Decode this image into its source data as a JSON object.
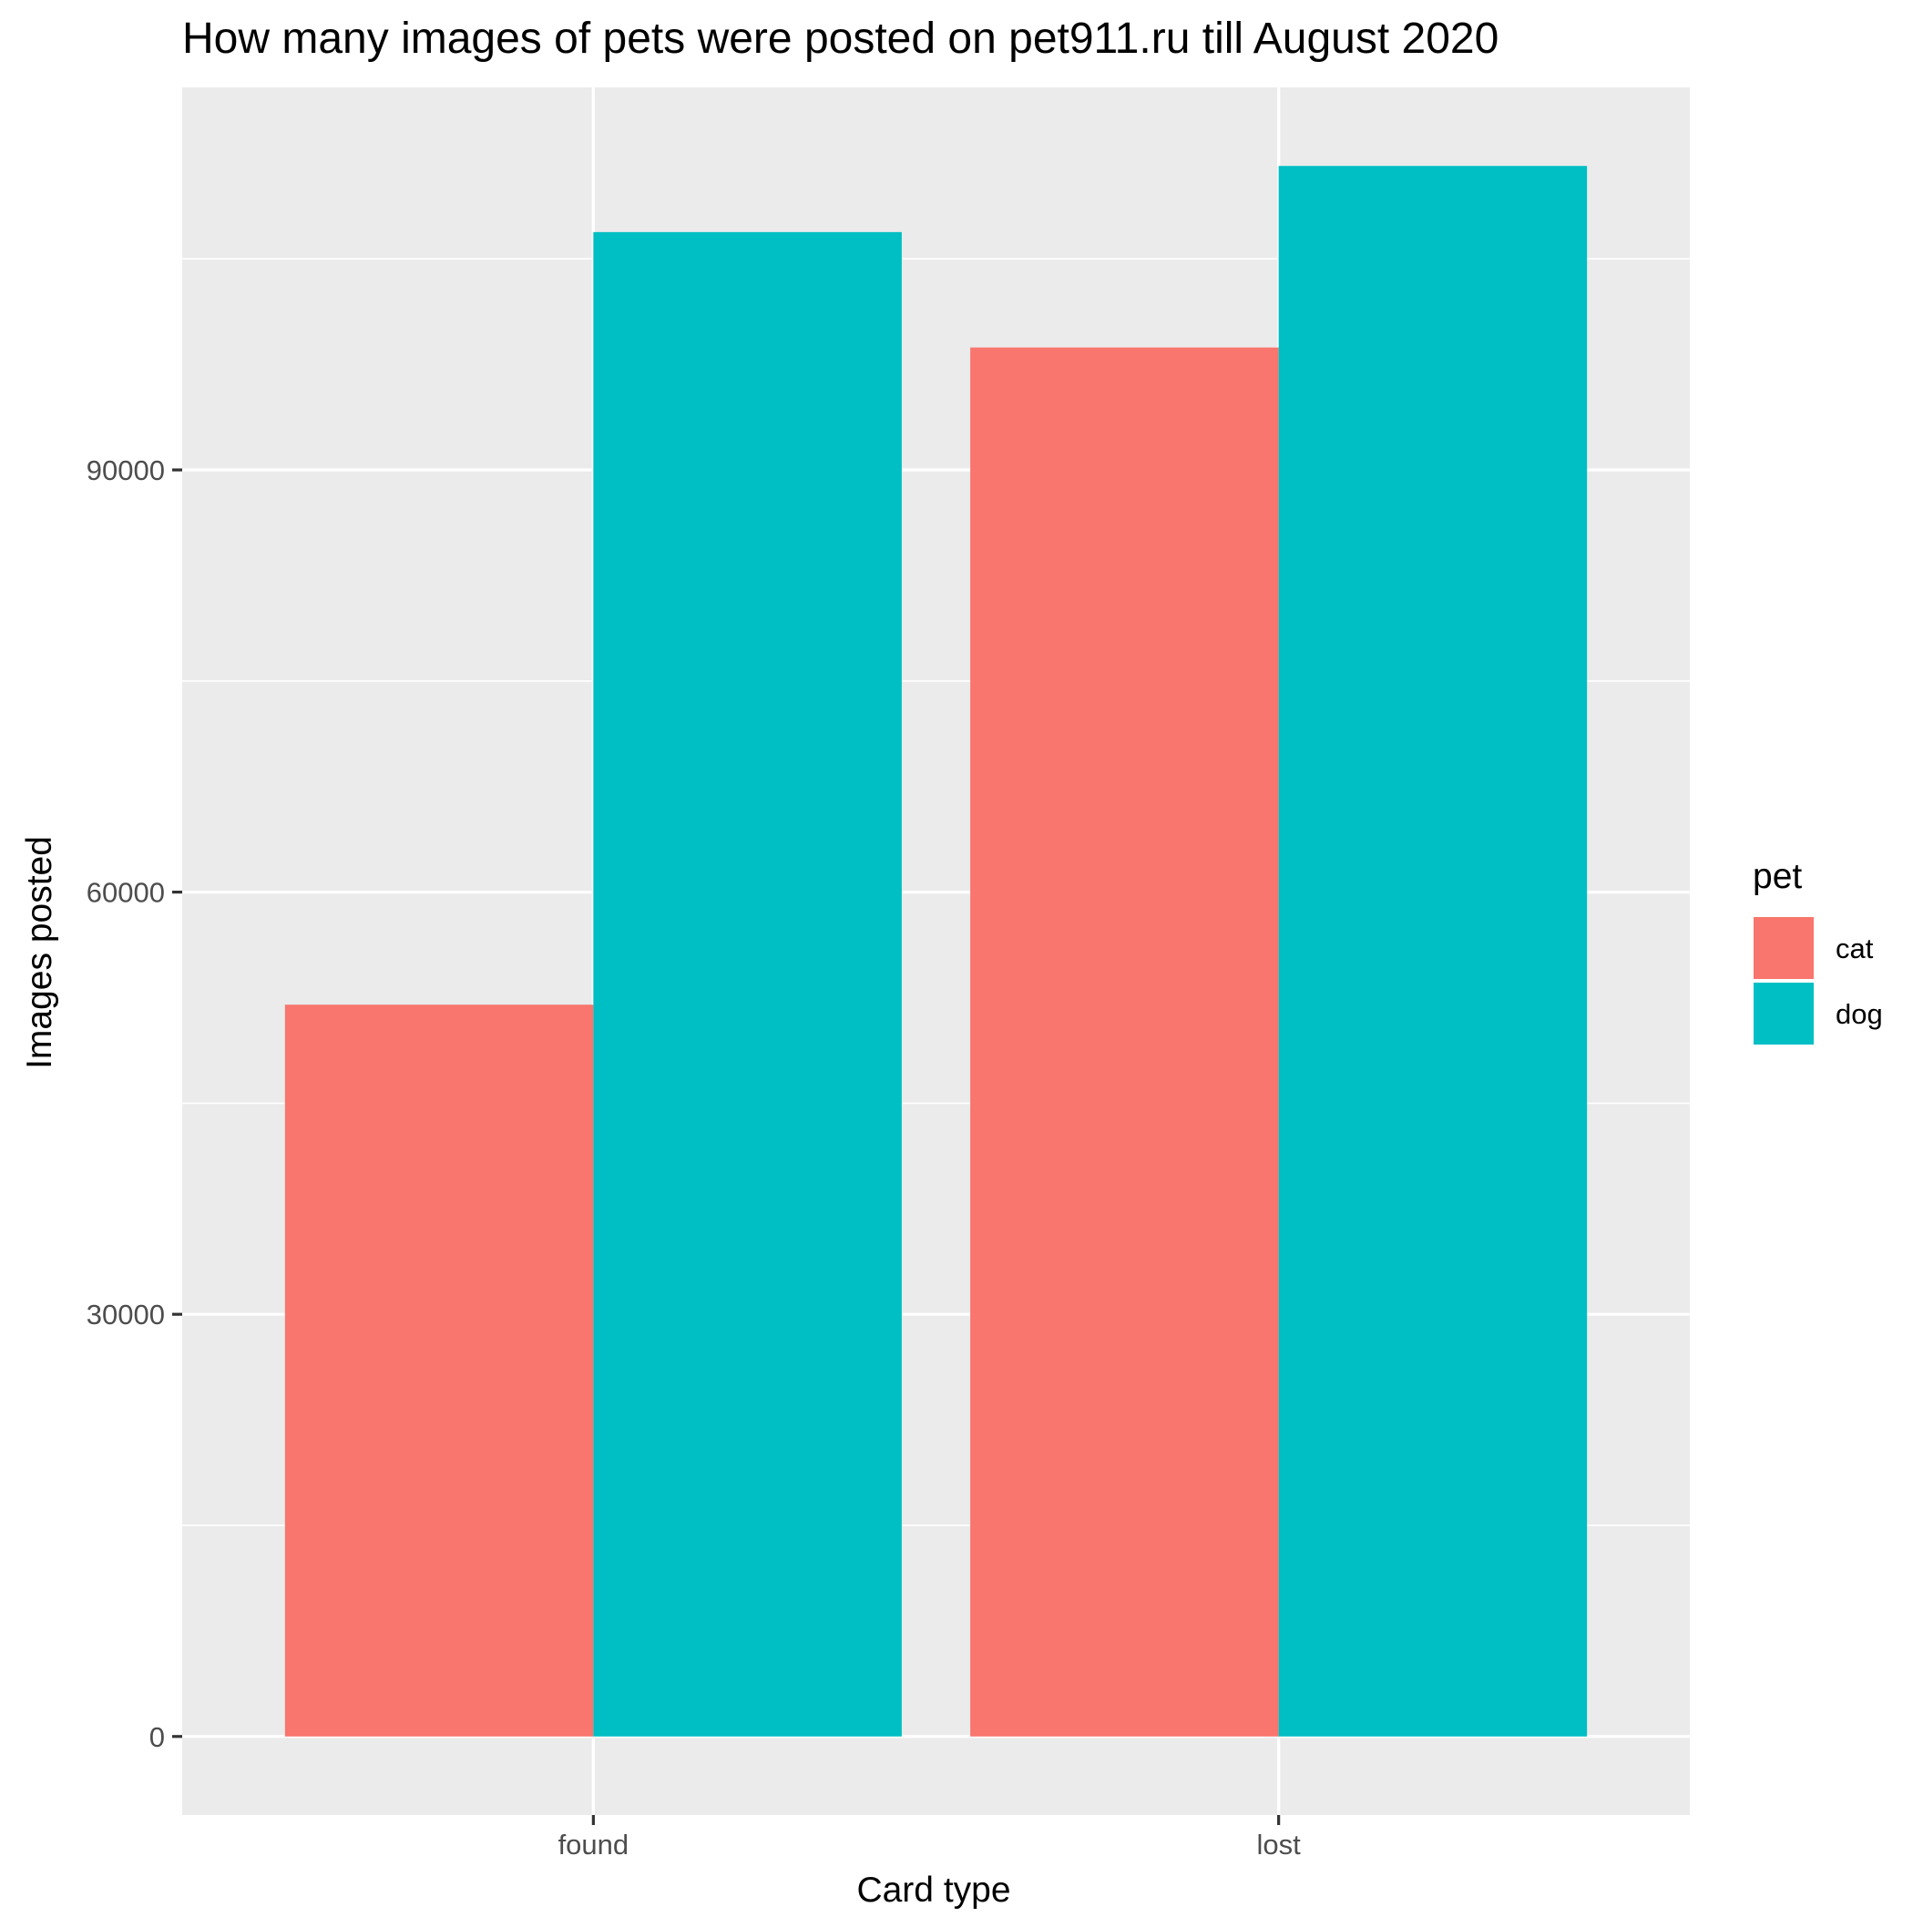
{
  "chart_data": {
    "type": "bar",
    "title": "How many images of pets were posted on pet911.ru till August 2020",
    "xlabel": "Card type",
    "ylabel": "Images posted",
    "categories": [
      "found",
      "lost"
    ],
    "series": [
      {
        "name": "cat",
        "values": [
          52000,
          98700
        ],
        "color": "#F8766D"
      },
      {
        "name": "dog",
        "values": [
          106900,
          111600
        ],
        "color": "#00BFC4"
      }
    ],
    "yticks": [
      0,
      30000,
      60000,
      90000
    ],
    "yticks_labels": [
      "0",
      "30000",
      "60000",
      "90000"
    ],
    "ylim": [
      -5580,
      117180
    ],
    "grid": true,
    "legend": {
      "title": "pet",
      "position": "right",
      "items": [
        "cat",
        "dog"
      ]
    },
    "colors": {
      "panel_background": "#EBEBEB",
      "grid_major": "#FFFFFF",
      "grid_minor": "#FFFFFF",
      "tick_text": "#4D4D4D",
      "tick_mark": "#333333"
    }
  }
}
